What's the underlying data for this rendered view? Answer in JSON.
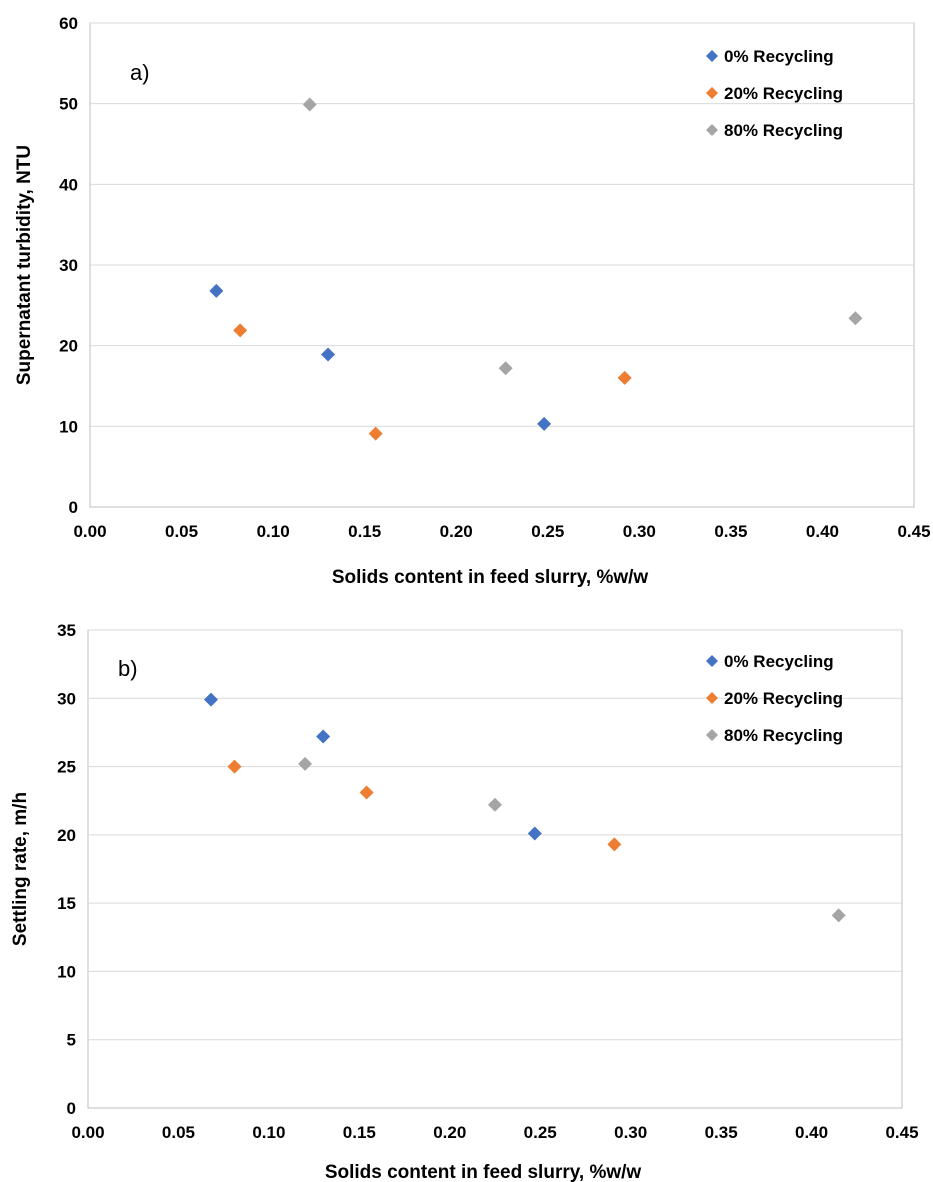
{
  "chart_data": [
    {
      "type": "scatter",
      "panel_label": "a)",
      "xlabel": "Solids content in feed slurry, %w/w",
      "ylabel": "Supernatant turbidity, NTU",
      "xlim": [
        0,
        0.45
      ],
      "ylim": [
        0,
        60
      ],
      "x_ticks": [
        "0.00",
        "0.05",
        "0.10",
        "0.15",
        "0.20",
        "0.25",
        "0.30",
        "0.35",
        "0.40",
        "0.45"
      ],
      "y_ticks": [
        "0",
        "10",
        "20",
        "30",
        "40",
        "50",
        "60"
      ],
      "grid": true,
      "legend_position": "top-right",
      "series": [
        {
          "name": "0% Recycling",
          "color": "#4472C4",
          "marker": "diamond",
          "points": [
            [
              0.069,
              26.8
            ],
            [
              0.13,
              18.9
            ],
            [
              0.248,
              10.3
            ]
          ]
        },
        {
          "name": "20% Recycling",
          "color": "#ED7D31",
          "marker": "diamond",
          "points": [
            [
              0.082,
              21.9
            ],
            [
              0.156,
              9.1
            ],
            [
              0.292,
              16.0
            ]
          ]
        },
        {
          "name": "80% Recycling",
          "color": "#A5A5A5",
          "marker": "diamond",
          "points": [
            [
              0.12,
              49.9
            ],
            [
              0.227,
              17.2
            ],
            [
              0.418,
              23.4
            ]
          ]
        }
      ]
    },
    {
      "type": "scatter",
      "panel_label": "b)",
      "xlabel": "Solids content in feed slurry, %w/w",
      "ylabel": "Settling rate, m/h",
      "xlim": [
        0,
        0.45
      ],
      "ylim": [
        0,
        35
      ],
      "x_ticks": [
        "0.00",
        "0.05",
        "0.10",
        "0.15",
        "0.20",
        "0.25",
        "0.30",
        "0.35",
        "0.40",
        "0.45"
      ],
      "y_ticks": [
        "0",
        "5",
        "10",
        "15",
        "20",
        "25",
        "30",
        "35"
      ],
      "grid": true,
      "legend_position": "top-right",
      "series": [
        {
          "name": "0% Recycling",
          "color": "#4472C4",
          "marker": "diamond",
          "points": [
            [
              0.068,
              29.9
            ],
            [
              0.13,
              27.2
            ],
            [
              0.247,
              20.1
            ]
          ]
        },
        {
          "name": "20% Recycling",
          "color": "#ED7D31",
          "marker": "diamond",
          "points": [
            [
              0.081,
              25.0
            ],
            [
              0.154,
              23.1
            ],
            [
              0.291,
              19.3
            ]
          ]
        },
        {
          "name": "80% Recycling",
          "color": "#A5A5A5",
          "marker": "diamond",
          "points": [
            [
              0.12,
              25.2
            ],
            [
              0.225,
              22.2
            ],
            [
              0.415,
              14.1
            ]
          ]
        }
      ]
    }
  ]
}
